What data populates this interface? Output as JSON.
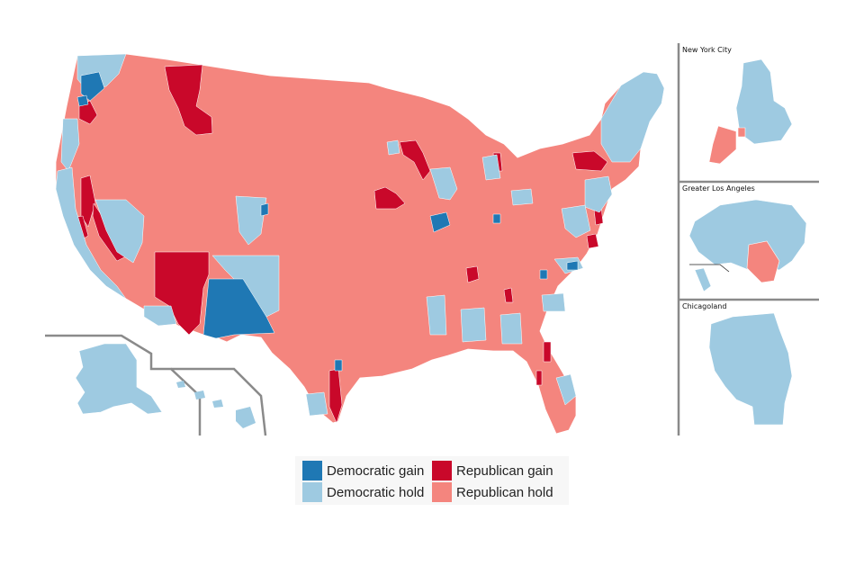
{
  "colors": {
    "democratic_gain": "#1f78b4",
    "democratic_hold": "#9ecae1",
    "republican_gain": "#c9082a",
    "republican_hold": "#f4857e",
    "border": "#ffffff",
    "inset_frame": "#8a8a8a"
  },
  "insets": [
    {
      "title": "New York City"
    },
    {
      "title": "Greater Los Angeles"
    },
    {
      "title": "Chicagoland"
    }
  ],
  "legend": {
    "items": [
      {
        "label": "Democratic gain",
        "color": "#1f78b4"
      },
      {
        "label": "Republican gain",
        "color": "#c9082a"
      },
      {
        "label": "Democratic hold",
        "color": "#9ecae1"
      },
      {
        "label": "Republican hold",
        "color": "#f4857e"
      }
    ]
  }
}
